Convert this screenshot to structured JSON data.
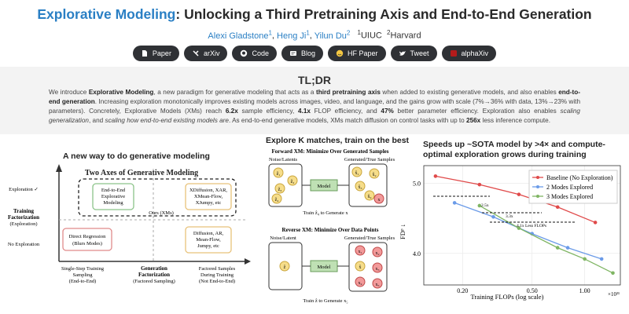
{
  "header": {
    "title_accent": "Explorative Modeling",
    "title_rest": ": Unlocking a Third Pretraining Axis and End-to-End Generation",
    "authors": [
      {
        "name": "Alexi Gladstone",
        "aff": "1"
      },
      {
        "name": "Heng Ji",
        "aff": "1"
      },
      {
        "name": "Yilun Du",
        "aff": "2"
      }
    ],
    "affiliations": [
      {
        "num": "1",
        "name": "UIUC"
      },
      {
        "num": "2",
        "name": "Harvard"
      }
    ]
  },
  "buttons": [
    {
      "label": "Paper",
      "icon": "file-icon"
    },
    {
      "label": "arXiv",
      "icon": "arxiv-icon"
    },
    {
      "label": "Code",
      "icon": "github-icon"
    },
    {
      "label": "Blog",
      "icon": "blog-icon"
    },
    {
      "label": "HF Paper",
      "icon": "huggingface-icon"
    },
    {
      "label": "Tweet",
      "icon": "twitter-icon"
    },
    {
      "label": "alphaXiv",
      "icon": "alphaxiv-icon"
    }
  ],
  "tldr": {
    "heading": "TL;DR",
    "p1": "We introduce ",
    "b1": "Explorative Modeling",
    "p2": ", a new paradigm for generative modeling that acts as a ",
    "b2": "third pretraining axis",
    "p3": " when added to existing generative models, and also enables ",
    "b3": "end-to-end generation",
    "p4": ". Increasing exploration monotonically improves existing models across images, video, and language, and the gains grow with scale (7%→36% with data, 13%→23% with parameters). Concretely, Explorative Models (XMs) reach ",
    "b4": "6.2x",
    "p5": " sample efficiency, ",
    "b5": "4.1x",
    "p6": " FLOP efficiency, and ",
    "b6": "47%",
    "p7": " better parameter efficiency. Exploration also enables ",
    "i1": "scaling generalization",
    "p8": ", and ",
    "i2": "scaling how end-to-end existing models are",
    "p9": ". As end-to-end generative models, XMs match diffusion on control tasks with up to ",
    "b7": "256x",
    "p10": " less inference compute."
  },
  "panel1": {
    "heading": "A new way to do generative modeling",
    "box_title": "Two Axes of Generative Modeling",
    "y_axis_label": [
      "Training",
      "Factorization",
      "(Exploration)"
    ],
    "row_top": "Exploration ✓",
    "row_bottom": "No Exploration",
    "q_tl": [
      "End-to-End",
      "Explorative",
      "Modeling"
    ],
    "q_tr": [
      "XDiffusion, XAR,",
      "XMean-Flow,",
      "XJumpy, etc"
    ],
    "ours": "Ours (XMs)",
    "q_bl": [
      "Direct Regression",
      "(Blurs Modes)"
    ],
    "q_br": [
      "Diffusion, AR,",
      "Mean-Flow,",
      "Jumpy, etc"
    ],
    "x_axis_label": [
      "Generation",
      "Factorization",
      "(Factored Sampling)"
    ],
    "col_left": [
      "Single-Step Training",
      "Sampling",
      "(End-to-End)"
    ],
    "col_right": [
      "Factored Samples",
      "During Training",
      "(Not End-to-End)"
    ]
  },
  "panel2": {
    "heading": "Explore K matches, train on the best",
    "fwd_title": "Forward XM: Minimize Over Generated Samples",
    "fwd_left": "Noise/Latents",
    "fwd_right": "Generated/True Samples",
    "fwd_model": "Model",
    "fwd_caption": "Train ẑ₄ to Generate x",
    "fwd_left_items": [
      "ẑ₁",
      "ẑ₂",
      "ẑ₃",
      "ẑ₄"
    ],
    "fwd_right_items": [
      "x̂₁",
      "x̂₂",
      "x̂₃",
      "x̂₄",
      "x"
    ],
    "rev_title": "Reverse XM: Minimize Over Data Points",
    "rev_left": "Noise/Latent",
    "rev_right": "Generated/True Samples",
    "rev_model": "Model",
    "rev_caption": "Train ẑ to Generate x₅",
    "rev_left_items": [
      "ẑ"
    ],
    "rev_right_items": [
      "x̂",
      "x₁",
      "x₂",
      "x₃",
      "x₄",
      "x₅"
    ]
  },
  "panel3": {
    "heading_l1": "Speeds up ~SOTA model by >4× and compute-",
    "heading_l2": "optimal exploration grows during training",
    "annotations": [
      "2.5x",
      "3.3x",
      "4.1x Less FLOPs"
    ],
    "x_exponent": "×10²¹",
    "colors": {
      "baseline": "#e04a4a",
      "two": "#6b9be8",
      "three": "#7fb563"
    }
  },
  "chart_data": {
    "type": "line",
    "title": "",
    "xlabel": "Training FLOPs (log scale)",
    "ylabel": "FDᵖ ↓",
    "xscale": "log",
    "xlim": [
      0.12,
      1.6
    ],
    "ylim": [
      3.55,
      5.25
    ],
    "xticks": [
      0.2,
      0.5,
      1.0
    ],
    "xtick_labels": [
      "0.20",
      "0.50",
      "1.00"
    ],
    "yticks": [
      4.0,
      5.0
    ],
    "ytick_labels": [
      "4.0",
      "5.0"
    ],
    "grid": true,
    "legend_position": "top-right",
    "series": [
      {
        "name": "Baseline (No Exploration)",
        "x": [
          0.14,
          0.25,
          0.42,
          0.7,
          1.15
        ],
        "y": [
          5.1,
          4.98,
          4.84,
          4.66,
          4.44
        ]
      },
      {
        "name": "2 Modes Explored",
        "x": [
          0.18,
          0.3,
          0.5,
          0.8,
          1.25
        ],
        "y": [
          4.72,
          4.52,
          4.28,
          4.08,
          3.92
        ]
      },
      {
        "name": "3 Modes Explored",
        "x": [
          0.25,
          0.42,
          0.7,
          1.0,
          1.45
        ],
        "y": [
          4.68,
          4.36,
          4.08,
          3.92,
          3.72
        ]
      }
    ]
  }
}
